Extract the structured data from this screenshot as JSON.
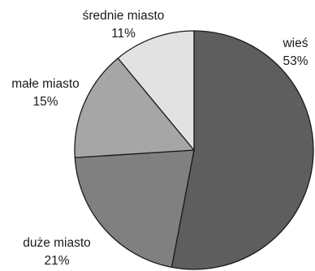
{
  "chart_data": {
    "type": "pie",
    "categories": [
      "wieś",
      "duże miasto",
      "małe miasto",
      "średnie miasto"
    ],
    "values": [
      53,
      21,
      15,
      11
    ],
    "value_labels": [
      "53%",
      "21%",
      "15%",
      "11%"
    ],
    "colors": [
      "#5e5e5e",
      "#808080",
      "#a6a6a6",
      "#e2e2e2"
    ],
    "title": "",
    "legend": "none"
  }
}
